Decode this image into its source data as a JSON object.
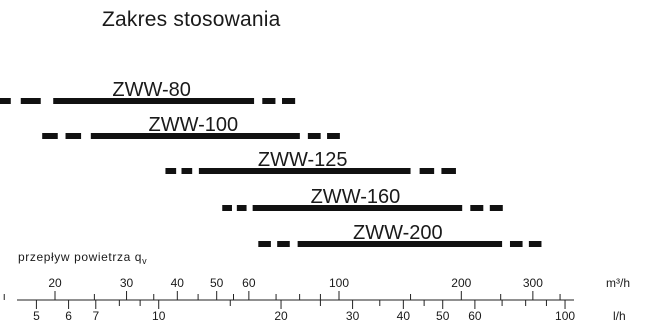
{
  "chart_data": {
    "type": "range",
    "title": "Zakres stosowania",
    "flow_label": {
      "text": "przepływ powietrza q",
      "subscript": "v"
    },
    "scale": "log",
    "axes": {
      "top": {
        "unit": "m³/h",
        "ticks": [
          15,
          20,
          25,
          30,
          35,
          40,
          45,
          50,
          55,
          60,
          70,
          80,
          90,
          100,
          150,
          200,
          250,
          300,
          350
        ],
        "labels": [
          20,
          30,
          40,
          50,
          60,
          100,
          200,
          300
        ]
      },
      "bottom": {
        "unit": "l/h",
        "ticks": [
          5,
          6,
          7,
          8,
          9,
          10,
          15,
          20,
          25,
          30,
          35,
          40,
          45,
          50,
          60,
          70,
          80,
          90,
          100
        ],
        "labels": [
          5,
          6,
          7,
          10,
          20,
          30,
          40,
          50,
          60,
          100
        ]
      }
    },
    "series": [
      {
        "name": "ZWW-80",
        "min_m3h": 19.8,
        "max_m3h": 61.8,
        "ext_min_m3h": 13.9,
        "ext_max_m3h": 78.0
      },
      {
        "name": "ZWW-100",
        "min_m3h": 24.5,
        "max_m3h": 80.1,
        "ext_min_m3h": 18.6,
        "ext_max_m3h": 100.5
      },
      {
        "name": "ZWW-125",
        "min_m3h": 45.2,
        "max_m3h": 150.0,
        "ext_min_m3h": 37.4,
        "ext_max_m3h": 194.0
      },
      {
        "name": "ZWW-160",
        "min_m3h": 61.3,
        "max_m3h": 201.0,
        "ext_min_m3h": 51.6,
        "ext_max_m3h": 253.0
      },
      {
        "name": "ZWW-200",
        "min_m3h": 79.1,
        "max_m3h": 252.0,
        "ext_min_m3h": 63.3,
        "ext_max_m3h": 315.0
      }
    ]
  }
}
